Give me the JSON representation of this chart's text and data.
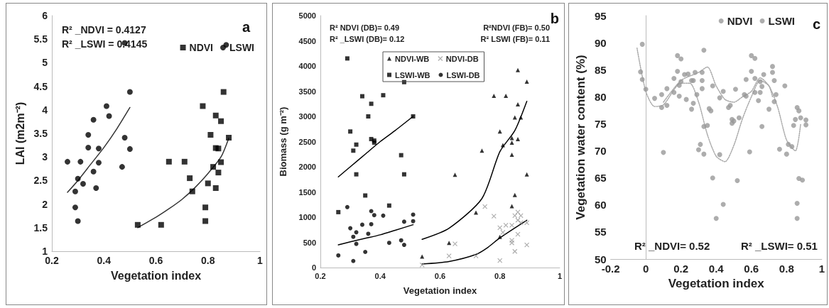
{
  "chart_data": [
    {
      "type": "scatter",
      "title": "a",
      "xlabel": "Vegetation index",
      "ylabel": "LAI (m2m⁻²)",
      "xlim": [
        0.2,
        1
      ],
      "ylim": [
        1,
        6
      ],
      "xticks": [
        0.2,
        0.4,
        0.6,
        0.8,
        1
      ],
      "yticks": [
        1,
        1.5,
        2,
        2.5,
        3,
        3.5,
        4,
        4.5,
        5,
        5.5,
        6
      ],
      "legend": "top right",
      "annotations": [
        "R² _NDVI = 0.4127",
        "R² _LSWI = 0.4145"
      ],
      "series": [
        {
          "name": "NDVI",
          "color": "#000000",
          "marker": "square",
          "x": [
            0.53,
            0.62,
            0.65,
            0.71,
            0.73,
            0.74,
            0.78,
            0.79,
            0.79,
            0.8,
            0.81,
            0.82,
            0.83,
            0.83,
            0.83,
            0.84,
            0.84,
            0.85,
            0.85,
            0.86,
            0.88
          ],
          "values": [
            1.56,
            1.56,
            2.9,
            2.9,
            2.55,
            2.27,
            4.08,
            1.93,
            1.64,
            2.44,
            3.47,
            2.79,
            3.88,
            2.34,
            3.19,
            2.67,
            3.18,
            3.76,
            2.89,
            4.38,
            3.41
          ]
        },
        {
          "name": "LSWI",
          "color": "#000000",
          "marker": "circle",
          "x": [
            0.26,
            0.29,
            0.29,
            0.3,
            0.3,
            0.31,
            0.32,
            0.34,
            0.34,
            0.36,
            0.36,
            0.37,
            0.38,
            0.38,
            0.41,
            0.42,
            0.47,
            0.48,
            0.5,
            0.5,
            0.48,
            0.87
          ],
          "values": [
            2.9,
            2.27,
            1.93,
            1.64,
            2.54,
            2.9,
            2.43,
            3.47,
            3.2,
            2.69,
            3.79,
            2.34,
            2.88,
            3.18,
            4.08,
            3.87,
            2.79,
            3.41,
            4.38,
            3.17,
            5.42,
            5.38
          ]
        },
        {
          "type": "line",
          "color": "#333333",
          "x": [
            0.26,
            0.3,
            0.35,
            0.4,
            0.45,
            0.5
          ],
          "values": [
            2.25,
            2.5,
            2.85,
            3.2,
            3.6,
            4.05
          ]
        },
        {
          "type": "line",
          "color": "#333333",
          "x": [
            0.53,
            0.6,
            0.65,
            0.7,
            0.75,
            0.8,
            0.85,
            0.88
          ],
          "values": [
            1.5,
            1.72,
            1.9,
            2.1,
            2.35,
            2.65,
            3.0,
            3.4
          ]
        }
      ]
    },
    {
      "type": "scatter",
      "title": "b",
      "xlabel": "Vegetation index",
      "ylabel": "Biomass (g m⁻²)",
      "xlim": [
        0.2,
        1
      ],
      "ylim": [
        0,
        5000
      ],
      "xticks": [
        0.2,
        0.4,
        0.6,
        0.8,
        1
      ],
      "yticks": [
        0,
        500,
        1000,
        1500,
        2000,
        2500,
        3000,
        3500,
        4000,
        4500,
        5000
      ],
      "legend": "top",
      "annotations": [
        "R² NDVI (DB)= 0.49",
        "R² _LSWI (DB)= 0.12",
        "R²NDVI (FB)= 0.50",
        "R² LSWI (FB)= 0.11"
      ],
      "series": [
        {
          "name": "NDVI-WB",
          "color": "#000000",
          "marker": "triangle",
          "x": [
            0.54,
            0.63,
            0.65,
            0.72,
            0.74,
            0.78,
            0.8,
            0.8,
            0.81,
            0.82,
            0.84,
            0.84,
            0.84,
            0.84,
            0.85,
            0.86,
            0.86,
            0.85,
            0.86,
            0.87,
            0.89,
            0.89
          ],
          "values": [
            220,
            490,
            1840,
            1090,
            2320,
            3410,
            2700,
            610,
            2430,
            3410,
            2240,
            1220,
            2570,
            2480,
            1440,
            3920,
            3240,
            2980,
            2550,
            2980,
            3690,
            1850
          ]
        },
        {
          "name": "NDVI-DB",
          "color": "#999999",
          "marker": "cross",
          "x": [
            0.54,
            0.63,
            0.65,
            0.72,
            0.75,
            0.78,
            0.8,
            0.8,
            0.81,
            0.82,
            0.84,
            0.84,
            0.84,
            0.85,
            0.85,
            0.86,
            0.86,
            0.86,
            0.87,
            0.87,
            0.89,
            0.89
          ],
          "values": [
            50,
            230,
            470,
            230,
            1210,
            1020,
            790,
            140,
            700,
            840,
            540,
            490,
            840,
            320,
            1030,
            660,
            1100,
            940,
            1030,
            890,
            890,
            450
          ]
        },
        {
          "name": "LSWI-WB",
          "color": "#000000",
          "marker": "square",
          "x": [
            0.26,
            0.29,
            0.3,
            0.31,
            0.32,
            0.32,
            0.34,
            0.35,
            0.36,
            0.37,
            0.37,
            0.38,
            0.38,
            0.41,
            0.43,
            0.47,
            0.48,
            0.48,
            0.51
          ],
          "values": [
            1100,
            4150,
            2700,
            2320,
            1850,
            2440,
            3400,
            1430,
            3000,
            3250,
            2550,
            2520,
            2480,
            3420,
            1230,
            2230,
            3680,
            1850,
            3000
          ]
        },
        {
          "name": "LSWI-DB",
          "color": "#000000",
          "marker": "circle",
          "x": [
            0.26,
            0.29,
            0.3,
            0.31,
            0.31,
            0.32,
            0.32,
            0.34,
            0.35,
            0.36,
            0.37,
            0.37,
            0.38,
            0.41,
            0.43,
            0.47,
            0.48,
            0.48,
            0.51,
            0.51
          ],
          "values": [
            240,
            1200,
            780,
            130,
            610,
            470,
            700,
            850,
            310,
            670,
            1120,
            860,
            1040,
            1030,
            490,
            540,
            910,
            450,
            1050,
            920
          ]
        },
        {
          "type": "line",
          "color": "#000000",
          "x": [
            0.26,
            0.3,
            0.35,
            0.4,
            0.45,
            0.51
          ],
          "values": [
            1800,
            2000,
            2250,
            2500,
            2720,
            3000
          ]
        },
        {
          "type": "line",
          "color": "#000000",
          "x": [
            0.26,
            0.3,
            0.35,
            0.4,
            0.45,
            0.51
          ],
          "values": [
            450,
            510,
            580,
            650,
            740,
            850
          ]
        },
        {
          "type": "line",
          "color": "#000000",
          "x": [
            0.54,
            0.63,
            0.74,
            0.8,
            0.85,
            0.89
          ],
          "values": [
            560,
            780,
            1370,
            2300,
            2720,
            3300
          ]
        },
        {
          "type": "line",
          "color": "#000000",
          "x": [
            0.54,
            0.63,
            0.72,
            0.76,
            0.8,
            0.89
          ],
          "values": [
            70,
            120,
            260,
            400,
            590,
            940
          ]
        }
      ]
    },
    {
      "type": "scatter",
      "title": "c",
      "xlabel": "Vegetation index",
      "ylabel": "Vegetation water content (%)",
      "xlim": [
        -0.2,
        1
      ],
      "ylim": [
        50,
        95
      ],
      "xticks": [
        -0.2,
        0,
        0.2,
        0.4,
        0.6,
        0.8,
        1
      ],
      "yticks": [
        50,
        55,
        60,
        65,
        70,
        75,
        80,
        85,
        90,
        95
      ],
      "legend": "top right",
      "annotations": [
        "R² _NDVI= 0.52",
        "R² _LSWI= 0.51"
      ],
      "series": [
        {
          "name": "NDVI",
          "color": "#999999",
          "marker": "circle",
          "x": [
            -0.02,
            -0.02,
            0.05,
            0.09,
            0.12,
            0.16,
            0.18,
            0.19,
            0.2,
            0.23,
            0.26,
            0.27,
            0.29,
            0.3,
            0.32,
            0.32,
            0.33,
            0.35,
            0.37,
            0.38,
            0.42,
            0.44,
            0.48,
            0.49,
            0.53,
            0.51,
            0.57,
            0.59,
            0.62,
            0.62,
            0.65,
            0.66,
            0.66,
            0.72,
            0.73,
            0.76,
            0.79,
            0.8,
            0.84,
            0.86,
            0.88,
            0.86,
            0.89,
            0.91
          ],
          "values": [
            89.7,
            83.2,
            79.7,
            78.0,
            81.5,
            80.8,
            87.6,
            80.1,
            82.8,
            79.5,
            77.7,
            83.0,
            80.4,
            70.2,
            84.5,
            81.5,
            69.4,
            74.7,
            77.4,
            82.0,
            79.8,
            60.1,
            78.4,
            75.1,
            76.1,
            81.4,
            80.1,
            69.8,
            87.1,
            80.8,
            80.8,
            81.9,
            74.5,
            85.6,
            83.0,
            70.3,
            82.0,
            69.4,
            74.7,
            78.0,
            76.1,
            57.5,
            64.6,
            74.8
          ]
        },
        {
          "name": "LSWI",
          "color": "#999999",
          "marker": "circle",
          "x": [
            -0.03,
            0.0,
            0.09,
            0.1,
            0.12,
            0.16,
            0.18,
            0.2,
            0.19,
            0.22,
            0.24,
            0.26,
            0.27,
            0.28,
            0.31,
            0.32,
            0.33,
            0.33,
            0.36,
            0.38,
            0.4,
            0.42,
            0.44,
            0.47,
            0.49,
            0.5,
            0.52,
            0.56,
            0.57,
            0.6,
            0.6,
            0.62,
            0.64,
            0.65,
            0.67,
            0.7,
            0.72,
            0.73,
            0.74,
            0.81,
            0.83,
            0.85,
            0.87,
            0.86,
            0.87,
            0.91
          ],
          "values": [
            84.6,
            81.4,
            80.4,
            69.7,
            78.4,
            83.4,
            84.7,
            87.0,
            82.1,
            84.1,
            84.2,
            83.0,
            78.8,
            84.5,
            71.2,
            83.0,
            74.5,
            88.6,
            77.8,
            65.0,
            57.5,
            69.3,
            81.0,
            78.0,
            75.8,
            75.5,
            64.5,
            80.4,
            83.2,
            84.7,
            87.6,
            83.4,
            79.3,
            82.8,
            84.1,
            77.7,
            84.5,
            79.1,
            80.4,
            71.2,
            70.8,
            75.8,
            77.4,
            60.3,
            64.9,
            75.7
          ]
        },
        {
          "type": "line",
          "color": "#aaaaaa",
          "line_style": "dotted",
          "x": [
            -0.05,
            0.0,
            0.05,
            0.1,
            0.2,
            0.25,
            0.3,
            0.35,
            0.4,
            0.45,
            0.5,
            0.55,
            0.6,
            0.65,
            0.7,
            0.75,
            0.8,
            0.85,
            0.88
          ],
          "values": [
            89,
            81,
            78.2,
            78.5,
            82.5,
            82.5,
            79,
            73,
            69,
            68,
            71,
            76,
            80,
            83,
            82,
            78,
            72,
            70,
            75
          ]
        },
        {
          "type": "line",
          "color": "#aaaaaa",
          "line_style": "dotted",
          "x": [
            0.1,
            0.2,
            0.3,
            0.35,
            0.4,
            0.45,
            0.5,
            0.55,
            0.6,
            0.65,
            0.7,
            0.72
          ],
          "values": [
            79,
            83,
            84.5,
            85.5,
            82,
            79.5,
            79,
            80,
            81,
            83.5,
            82,
            80
          ]
        }
      ]
    }
  ]
}
